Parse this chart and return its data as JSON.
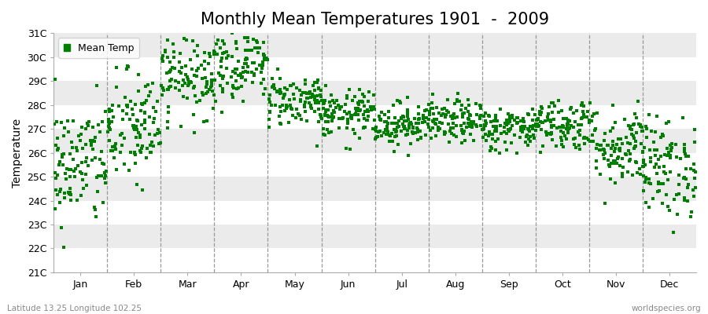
{
  "title": "Monthly Mean Temperatures 1901  -  2009",
  "ylabel": "Temperature",
  "xlabel_bottom_left": "Latitude 13.25 Longitude 102.25",
  "xlabel_bottom_right": "worldspecies.org",
  "legend_label": "Mean Temp",
  "ylim": [
    21,
    31
  ],
  "ytick_labels": [
    "21C",
    "22C",
    "23C",
    "24C",
    "25C",
    "26C",
    "27C",
    "28C",
    "29C",
    "30C",
    "31C"
  ],
  "ytick_values": [
    21,
    22,
    23,
    24,
    25,
    26,
    27,
    28,
    29,
    30,
    31
  ],
  "months": [
    "Jan",
    "Feb",
    "Mar",
    "Apr",
    "May",
    "Jun",
    "Jul",
    "Aug",
    "Sep",
    "Oct",
    "Nov",
    "Dec"
  ],
  "marker_color": "#008000",
  "marker_size": 7,
  "background_color": "#ffffff",
  "band_colors": [
    "#ffffff",
    "#ebebeb"
  ],
  "title_fontsize": 15,
  "axis_fontsize": 10,
  "tick_fontsize": 9,
  "monthly_means": [
    25.5,
    27.0,
    29.3,
    29.8,
    28.2,
    27.6,
    27.2,
    27.3,
    27.0,
    27.2,
    26.3,
    25.4
  ],
  "monthly_stds": [
    1.3,
    1.2,
    0.9,
    0.8,
    0.55,
    0.5,
    0.45,
    0.45,
    0.45,
    0.55,
    0.85,
    1.05
  ],
  "n_years": 109,
  "seed": 42
}
